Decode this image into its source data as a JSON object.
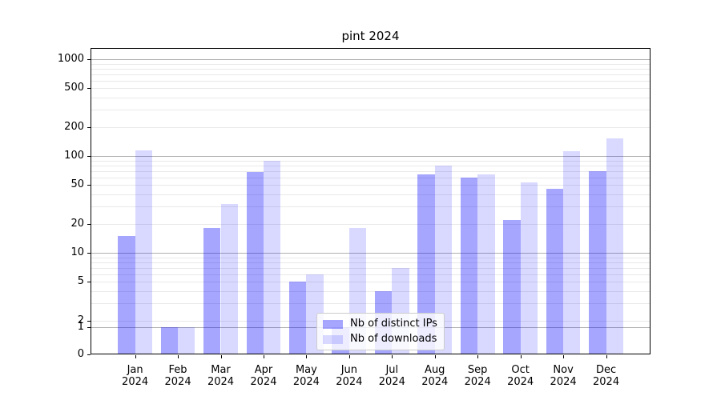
{
  "chart_data": {
    "type": "bar",
    "title": "pint 2024",
    "categories": [
      "Jan 2024",
      "Feb 2024",
      "Mar 2024",
      "Apr 2024",
      "May 2024",
      "Jun 2024",
      "Jul 2024",
      "Aug 2024",
      "Sep 2024",
      "Oct 2024",
      "Nov 2024",
      "Dec 2024"
    ],
    "series": [
      {
        "name": "Nb of distinct IPs",
        "color": "rgba(0,0,255,0.35)",
        "values": [
          15,
          1,
          18,
          68,
          5,
          1,
          4,
          65,
          60,
          22,
          46,
          70
        ]
      },
      {
        "name": "Nb of downloads",
        "color": "rgba(0,0,255,0.15)",
        "values": [
          115,
          1,
          32,
          90,
          6,
          18,
          7,
          79,
          64,
          53,
          112,
          152
        ]
      }
    ],
    "xlabel": "",
    "ylabel": "",
    "yscale": "symlog",
    "yticks": [
      0,
      1,
      2,
      5,
      10,
      20,
      50,
      100,
      200,
      500,
      1000
    ],
    "ytick_labels": [
      "0",
      "1",
      "2",
      "5",
      "10",
      "20",
      "50",
      "100",
      "200",
      "500",
      "1000"
    ],
    "ylim": [
      0,
      1330
    ],
    "grid": "horizontal, minor log gridlines",
    "legend_position": "lower-center"
  }
}
